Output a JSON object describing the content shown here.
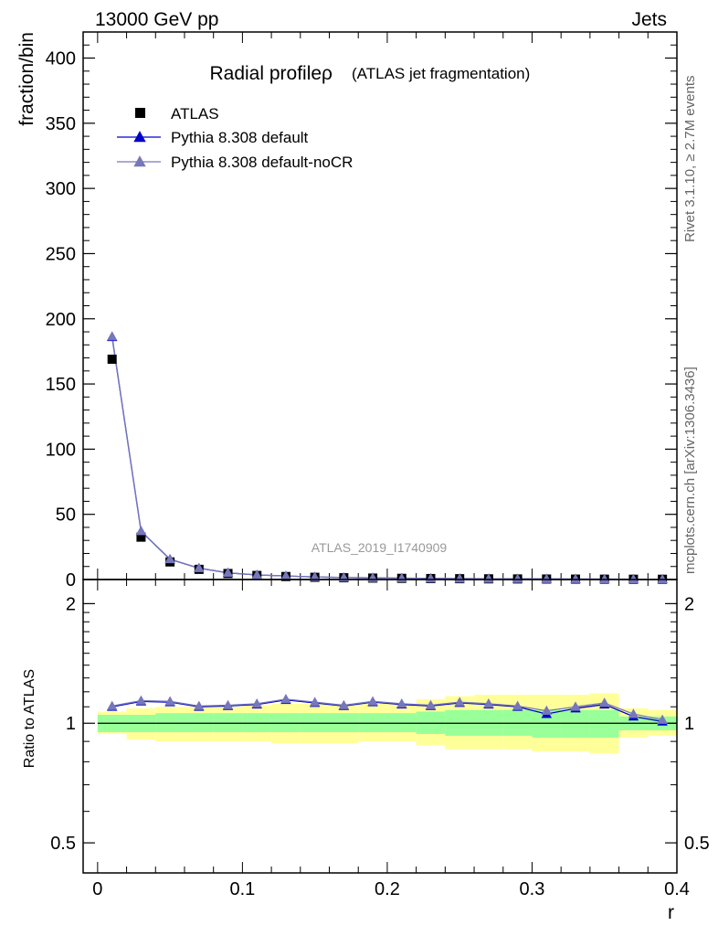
{
  "header": {
    "left": "13000 GeV pp",
    "right": "Jets"
  },
  "side_labels": {
    "rivet": "Rivet 3.1.10, ≥ 2.7M events",
    "source": "mcplots.cern.ch [arXiv:1306.3436]"
  },
  "watermark": "ATLAS_2019_I1740909",
  "colors": {
    "data": "#000000",
    "default": "#0000cc",
    "noCR": "#7777bb",
    "band_green": "#99ff99",
    "band_yellow": "#ffff99"
  },
  "chart_data": [
    {
      "type": "scatter",
      "title": "Radial profileρ",
      "subtitle": "(ATLAS jet fragmentation)",
      "xlabel": "",
      "ylabel": "fraction/bin",
      "xlim": [
        -0.01,
        0.4
      ],
      "ylim": [
        0,
        420
      ],
      "yticks": [
        0,
        50,
        100,
        150,
        200,
        250,
        300,
        350,
        400
      ],
      "legend_position": "top-left",
      "x": [
        0.01,
        0.03,
        0.05,
        0.07,
        0.09,
        0.11,
        0.13,
        0.15,
        0.17,
        0.19,
        0.21,
        0.23,
        0.25,
        0.27,
        0.29,
        0.31,
        0.33,
        0.35,
        0.37,
        0.39
      ],
      "series": [
        {
          "name": "ATLAS",
          "marker": "square",
          "values": [
            169,
            32.5,
            13.5,
            7.8,
            4.6,
            3.1,
            2.3,
            1.7,
            1.35,
            1.1,
            0.9,
            0.75,
            0.62,
            0.52,
            0.44,
            0.37,
            0.31,
            0.27,
            0.23,
            0.2
          ]
        },
        {
          "name": "Pythia 8.308 default",
          "marker": "triangle",
          "values": [
            186,
            37,
            15.5,
            8.7,
            5.1,
            3.5,
            2.7,
            1.95,
            1.52,
            1.27,
            1.03,
            0.85,
            0.72,
            0.6,
            0.5,
            0.4,
            0.35,
            0.31,
            0.24,
            0.2
          ]
        },
        {
          "name": "Pythia 8.308 default-noCR",
          "marker": "triangle",
          "values": [
            186.5,
            37.2,
            15.6,
            8.8,
            5.15,
            3.55,
            2.72,
            1.97,
            1.53,
            1.28,
            1.04,
            0.86,
            0.72,
            0.6,
            0.5,
            0.41,
            0.35,
            0.31,
            0.24,
            0.2
          ]
        }
      ]
    },
    {
      "type": "line",
      "title": "",
      "xlabel": "r",
      "ylabel": "Ratio to ATLAS",
      "xlim": [
        -0.01,
        0.4
      ],
      "ylim": [
        0.42,
        2.3
      ],
      "log_y": true,
      "yticks": [
        0.5,
        1,
        2
      ],
      "xticks": [
        0,
        0.1,
        0.2,
        0.3,
        0.4
      ],
      "x": [
        0.01,
        0.03,
        0.05,
        0.07,
        0.09,
        0.11,
        0.13,
        0.15,
        0.17,
        0.19,
        0.21,
        0.23,
        0.25,
        0.27,
        0.29,
        0.31,
        0.33,
        0.35,
        0.37,
        0.39
      ],
      "bands": {
        "green_lo": [
          0.95,
          0.95,
          0.95,
          0.95,
          0.95,
          0.95,
          0.95,
          0.95,
          0.95,
          0.95,
          0.95,
          0.94,
          0.93,
          0.93,
          0.93,
          0.92,
          0.92,
          0.92,
          0.96,
          0.96
        ],
        "green_hi": [
          1.05,
          1.05,
          1.06,
          1.06,
          1.06,
          1.06,
          1.06,
          1.06,
          1.06,
          1.06,
          1.06,
          1.07,
          1.08,
          1.08,
          1.08,
          1.08,
          1.08,
          1.08,
          1.04,
          1.04
        ],
        "yellow_lo": [
          0.94,
          0.91,
          0.9,
          0.9,
          0.9,
          0.9,
          0.89,
          0.89,
          0.89,
          0.9,
          0.9,
          0.88,
          0.86,
          0.86,
          0.86,
          0.85,
          0.85,
          0.84,
          0.92,
          0.93
        ],
        "yellow_hi": [
          1.07,
          1.09,
          1.1,
          1.1,
          1.1,
          1.11,
          1.12,
          1.12,
          1.12,
          1.12,
          1.12,
          1.15,
          1.17,
          1.18,
          1.18,
          1.18,
          1.18,
          1.19,
          1.09,
          1.08
        ]
      },
      "series": [
        {
          "name": "Pythia 8.308 default",
          "values": [
            1.1,
            1.135,
            1.13,
            1.1,
            1.105,
            1.115,
            1.145,
            1.125,
            1.105,
            1.13,
            1.115,
            1.105,
            1.125,
            1.115,
            1.1,
            1.055,
            1.09,
            1.115,
            1.04,
            1.01
          ]
        },
        {
          "name": "Pythia 8.308 default-noCR",
          "values": [
            1.105,
            1.14,
            1.135,
            1.105,
            1.11,
            1.12,
            1.15,
            1.13,
            1.11,
            1.135,
            1.12,
            1.11,
            1.13,
            1.12,
            1.105,
            1.075,
            1.1,
            1.125,
            1.055,
            1.02
          ]
        }
      ]
    }
  ]
}
